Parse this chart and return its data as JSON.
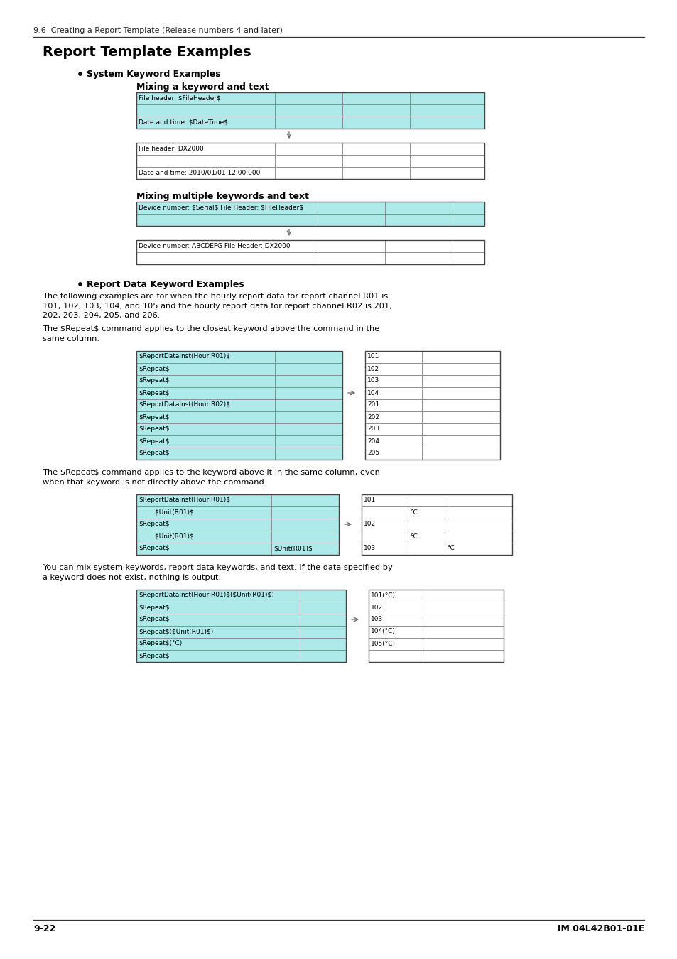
{
  "bg_color": "#ffffff",
  "header_text": "9.6  Creating a Report Template (Release numbers 4 and later)",
  "title": "Report Template Examples",
  "footer_left": "9-22",
  "footer_right": "IM 04L42B01-01E",
  "cyan_fill": "#aeeaea",
  "white_fill": "#ffffff",
  "border_color": "#444444",
  "grid_line_color": "#888888",
  "section1_bullet": "System Keyword Examples",
  "section1_sub1_title": "Mixing a keyword and text",
  "section1_sub2_title": "Mixing multiple keywords and text",
  "section2_bullet": "Report Data Keyword Examples",
  "section2_para1_lines": [
    "The following examples are for when the hourly report data for report channel R01 is",
    "101, 102, 103, 104, and 105 and the hourly report data for report channel R02 is 201,",
    "202, 203, 204, 205, and 206."
  ],
  "section2_para2_lines": [
    "The $Repeat$ command applies to the closest keyword above the command in the",
    "same column."
  ],
  "section2_para3_lines": [
    "The $Repeat$ command applies to the keyword above it in the same column, even",
    "when that keyword is not directly above the command."
  ],
  "section2_para4_lines": [
    "You can mix system keywords, report data keywords, and text. If the data specified by",
    "a keyword does not exist, nothing is output."
  ],
  "t1_top_rows": [
    [
      "File header: $FileHeader$",
      "",
      "",
      ""
    ],
    [
      "",
      "",
      "",
      ""
    ],
    [
      "Date and time: $DateTime$",
      "",
      "",
      ""
    ]
  ],
  "t1_bot_rows": [
    [
      "File header: DX2000",
      "",
      "",
      ""
    ],
    [
      "",
      "",
      "",
      ""
    ],
    [
      "Date and time: 2010/01/01 12:00:000",
      "",
      "",
      ""
    ]
  ],
  "t2_top_rows": [
    [
      "Device number: $Serial$ File Header: $FileHeader$",
      "",
      "",
      ""
    ],
    [
      "",
      "",
      "",
      ""
    ]
  ],
  "t2_bot_rows": [
    [
      "Device number: ABCDEFG File Header: DX2000",
      "",
      "",
      ""
    ],
    [
      "",
      "",
      "",
      ""
    ]
  ],
  "t3_left_rows": [
    [
      "$ReportDataInst(Hour,R01)$",
      ""
    ],
    [
      "$Repeat$",
      ""
    ],
    [
      "$Repeat$",
      ""
    ],
    [
      "$Repeat$",
      ""
    ],
    [
      "$ReportDataInst(Hour,R02)$",
      ""
    ],
    [
      "$Repeat$",
      ""
    ],
    [
      "$Repeat$",
      ""
    ],
    [
      "$Repeat$",
      ""
    ],
    [
      "$Repeat$",
      ""
    ]
  ],
  "t3_right_rows": [
    [
      "101",
      ""
    ],
    [
      "102",
      ""
    ],
    [
      "103",
      ""
    ],
    [
      "104",
      ""
    ],
    [
      "201",
      ""
    ],
    [
      "202",
      ""
    ],
    [
      "203",
      ""
    ],
    [
      "204",
      ""
    ],
    [
      "205",
      ""
    ]
  ],
  "t4_left_rows": [
    [
      "$ReportDataInst(Hour,R01)$",
      ""
    ],
    [
      "        $Unit(R01)$",
      ""
    ],
    [
      "$Repeat$",
      ""
    ],
    [
      "        $Unit(R01)$",
      ""
    ],
    [
      "$Repeat$",
      "$Unit(R01)$"
    ]
  ],
  "t4_right_rows": [
    [
      "101",
      "",
      ""
    ],
    [
      "",
      "°C",
      ""
    ],
    [
      "102",
      "",
      ""
    ],
    [
      "",
      "°C",
      ""
    ],
    [
      "103",
      "",
      "°C"
    ]
  ],
  "t5_left_rows": [
    [
      "$ReportDataInst(Hour,R01)$($Unit(R01)$)",
      ""
    ],
    [
      "$Repeat$",
      ""
    ],
    [
      "$Repeat$",
      ""
    ],
    [
      "$Repeat$($Unit(R01)$)",
      ""
    ],
    [
      "$Repeat$(°C)",
      ""
    ],
    [
      "$Repeat$",
      ""
    ]
  ],
  "t5_right_rows": [
    [
      "101(°C)",
      ""
    ],
    [
      "102",
      ""
    ],
    [
      "103",
      ""
    ],
    [
      "104(°C)",
      ""
    ],
    [
      "105(°C)",
      ""
    ],
    [
      "",
      ""
    ]
  ]
}
